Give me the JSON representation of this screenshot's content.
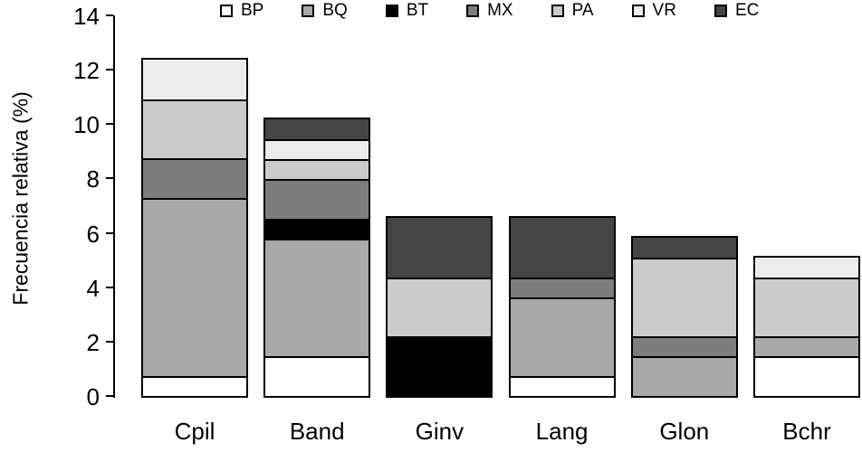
{
  "chart_data": {
    "type": "bar",
    "stacked": true,
    "title": "",
    "xlabel": "",
    "ylabel": "Frecuencia relativa (%)",
    "ylim": [
      0,
      14
    ],
    "yticks": [
      0,
      2,
      4,
      6,
      8,
      10,
      12,
      14
    ],
    "grid": false,
    "legend_position": "top",
    "categories": [
      "Cpil",
      "Band",
      "Ginv",
      "Lang",
      "Glon",
      "Bchr"
    ],
    "series": [
      {
        "name": "BP",
        "color": "#ffffff",
        "values": [
          0.73,
          1.45,
          0,
          0.73,
          0,
          1.45
        ]
      },
      {
        "name": "BQ",
        "color": "#a9a9a9",
        "values": [
          6.55,
          4.35,
          0,
          2.9,
          1.45,
          0.73
        ]
      },
      {
        "name": "BT",
        "color": "#000000",
        "values": [
          0,
          0.73,
          2.18,
          0,
          0,
          0
        ]
      },
      {
        "name": "MX",
        "color": "#7d7d7d",
        "values": [
          1.45,
          1.45,
          0,
          0.73,
          0.73,
          0
        ]
      },
      {
        "name": "PA",
        "color": "#cbcbcb",
        "values": [
          2.18,
          0.73,
          2.18,
          0,
          2.9,
          2.18
        ]
      },
      {
        "name": "VR",
        "color": "#ececec",
        "values": [
          1.45,
          0.73,
          0,
          0,
          0,
          0.73
        ]
      },
      {
        "name": "EC",
        "color": "#454545",
        "values": [
          0,
          0.73,
          2.18,
          2.18,
          0.73,
          0
        ]
      }
    ],
    "bar_totals": [
      12.36,
      10.17,
      6.54,
      6.54,
      5.81,
      5.09
    ]
  }
}
